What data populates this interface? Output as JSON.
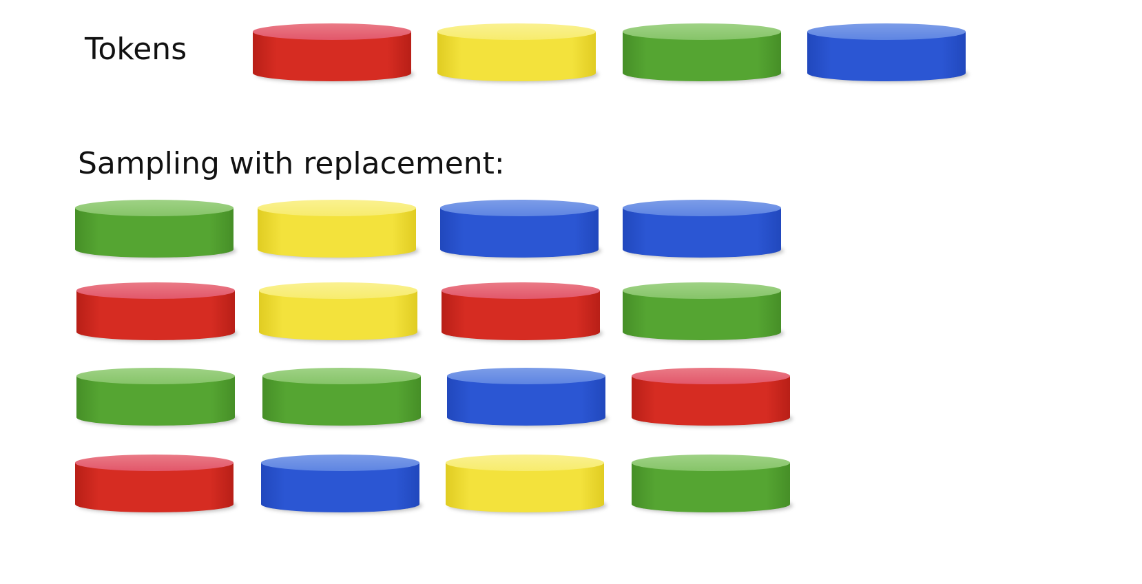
{
  "tokens_label": "Tokens",
  "sampling_label": "Sampling with replacement:",
  "colors": {
    "red": {
      "side": "#d62c22",
      "side_dark": "#b81f17",
      "top": "#e2576a",
      "top_hi": "#ea7a86"
    },
    "yellow": {
      "side": "#f3e23c",
      "side_dark": "#e0cc22",
      "top": "#f7ec6e",
      "top_hi": "#faf190"
    },
    "green": {
      "side": "#55a532",
      "side_dark": "#468f27",
      "top": "#86c469",
      "top_hi": "#9fd285"
    },
    "blue": {
      "side": "#2b56d3",
      "side_dark": "#2148bd",
      "top": "#5e85e2",
      "top_hi": "#7c9de8"
    }
  },
  "tokens": [
    "red",
    "yellow",
    "green",
    "blue"
  ],
  "samples": [
    [
      "green",
      "yellow",
      "blue",
      "blue"
    ],
    [
      "red",
      "yellow",
      "red",
      "green"
    ],
    [
      "green",
      "green",
      "blue",
      "red"
    ],
    [
      "red",
      "blue",
      "yellow",
      "green"
    ]
  ]
}
